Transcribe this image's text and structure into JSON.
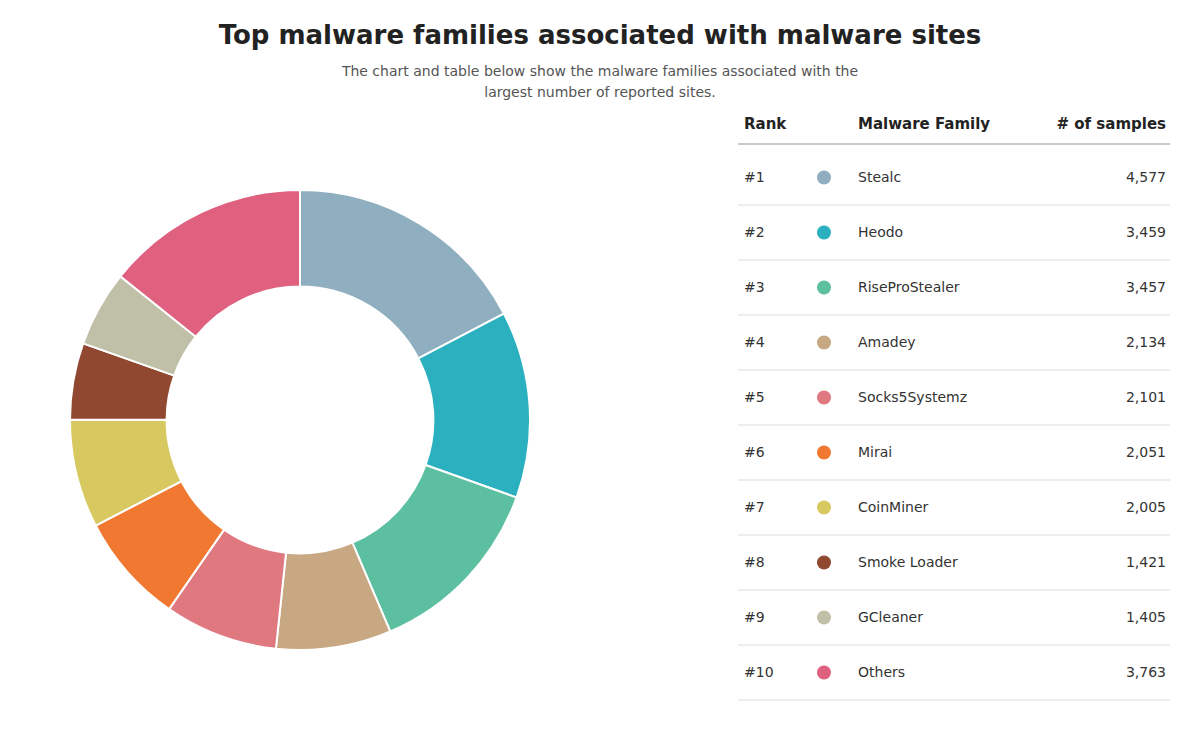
{
  "chart_data": {
    "type": "pie",
    "title": "Top malware families associated with malware sites",
    "subtitle": "The chart and table below show the malware families associated with the\nlargest number of reported sites.",
    "columns": [
      "Rank",
      "Malware Family",
      "# of samples"
    ],
    "ranks": [
      "#1",
      "#2",
      "#3",
      "#4",
      "#5",
      "#6",
      "#7",
      "#8",
      "#9",
      "#10"
    ],
    "categories": [
      "Stealc",
      "Heodo",
      "RiseProStealer",
      "Amadey",
      "Socks5Systemz",
      "Mirai",
      "CoinMiner",
      "Smoke Loader",
      "GCleaner",
      "Others"
    ],
    "values": [
      4577,
      3459,
      3457,
      2134,
      2101,
      2051,
      2005,
      1421,
      1405,
      3763
    ],
    "value_labels": [
      "4,577",
      "3,459",
      "3,457",
      "2,134",
      "2,101",
      "2,051",
      "2,005",
      "1,421",
      "1,405",
      "3,763"
    ],
    "colors": [
      "#8fafc0",
      "#2ab0bf",
      "#5bbfa0",
      "#c8a882",
      "#e07880",
      "#f07830",
      "#d8c860",
      "#904830",
      "#c0c0a8",
      "#e06080"
    ]
  }
}
